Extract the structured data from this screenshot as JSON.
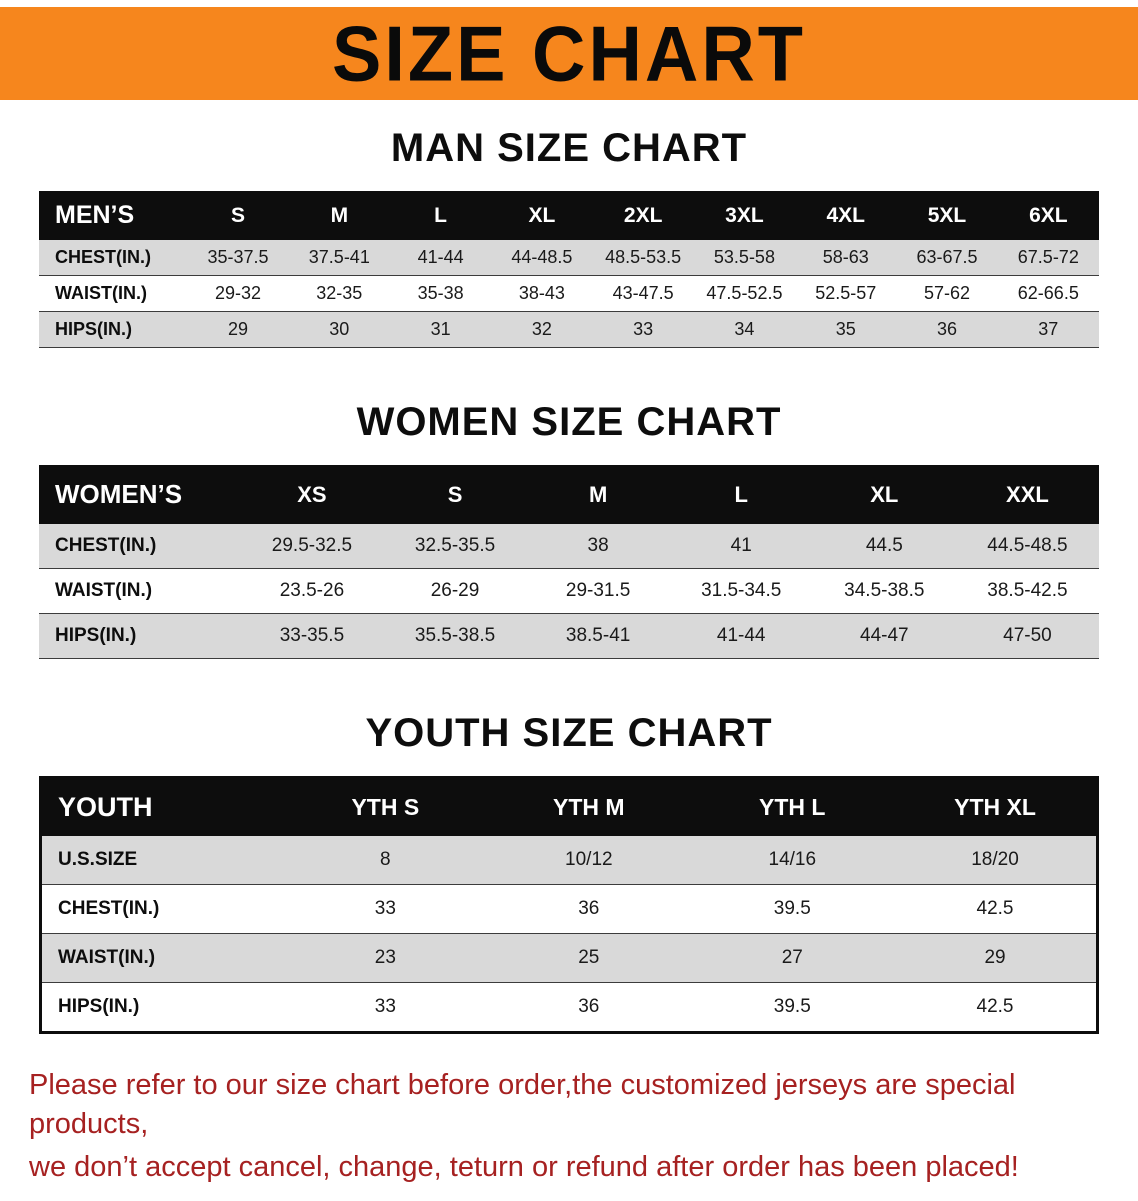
{
  "banner": {
    "title": "SIZE CHART",
    "bg_color": "#F6861D"
  },
  "men": {
    "heading": "MAN SIZE CHART",
    "table": {
      "label": "MEN’S",
      "columns": [
        "S",
        "M",
        "L",
        "XL",
        "2XL",
        "3XL",
        "4XL",
        "5XL",
        "6XL"
      ],
      "rows": [
        {
          "label": "CHEST(IN.)",
          "values": [
            "35-37.5",
            "37.5-41",
            "41-44",
            "44-48.5",
            "48.5-53.5",
            "53.5-58",
            "58-63",
            "63-67.5",
            "67.5-72"
          ]
        },
        {
          "label": "WAIST(IN.)",
          "values": [
            "29-32",
            "32-35",
            "35-38",
            "38-43",
            "43-47.5",
            "47.5-52.5",
            "52.5-57",
            "57-62",
            "62-66.5"
          ]
        },
        {
          "label": "HIPS(IN.)",
          "values": [
            "29",
            "30",
            "31",
            "32",
            "33",
            "34",
            "35",
            "36",
            "37"
          ]
        }
      ]
    }
  },
  "women": {
    "heading": "WOMEN SIZE CHART",
    "table": {
      "label": "WOMEN’S",
      "columns": [
        "XS",
        "S",
        "M",
        "L",
        "XL",
        "XXL"
      ],
      "rows": [
        {
          "label": "CHEST(IN.)",
          "values": [
            "29.5-32.5",
            "32.5-35.5",
            "38",
            "41",
            "44.5",
            "44.5-48.5"
          ]
        },
        {
          "label": "WAIST(IN.)",
          "values": [
            "23.5-26",
            "26-29",
            "29-31.5",
            "31.5-34.5",
            "34.5-38.5",
            "38.5-42.5"
          ]
        },
        {
          "label": "HIPS(IN.)",
          "values": [
            "33-35.5",
            "35.5-38.5",
            "38.5-41",
            "41-44",
            "44-47",
            "47-50"
          ]
        }
      ]
    }
  },
  "youth": {
    "heading": "YOUTH SIZE CHART",
    "table": {
      "label": "YOUTH",
      "columns": [
        "YTH S",
        "YTH M",
        "YTH L",
        "YTH XL"
      ],
      "rows": [
        {
          "label": "U.S.SIZE",
          "values": [
            "8",
            "10/12",
            "14/16",
            "18/20"
          ]
        },
        {
          "label": "CHEST(IN.)",
          "values": [
            "33",
            "36",
            "39.5",
            "42.5"
          ]
        },
        {
          "label": "WAIST(IN.)",
          "values": [
            "23",
            "25",
            "27",
            "29"
          ]
        },
        {
          "label": "HIPS(IN.)",
          "values": [
            "33",
            "36",
            "39.5",
            "42.5"
          ]
        }
      ]
    }
  },
  "footer": {
    "color": "#A62121",
    "lines": [
      "Please refer to our size chart before order,the customized jerseys are special products,",
      "we don’t accept cancel, change, teturn or refund after order has been placed!"
    ]
  }
}
